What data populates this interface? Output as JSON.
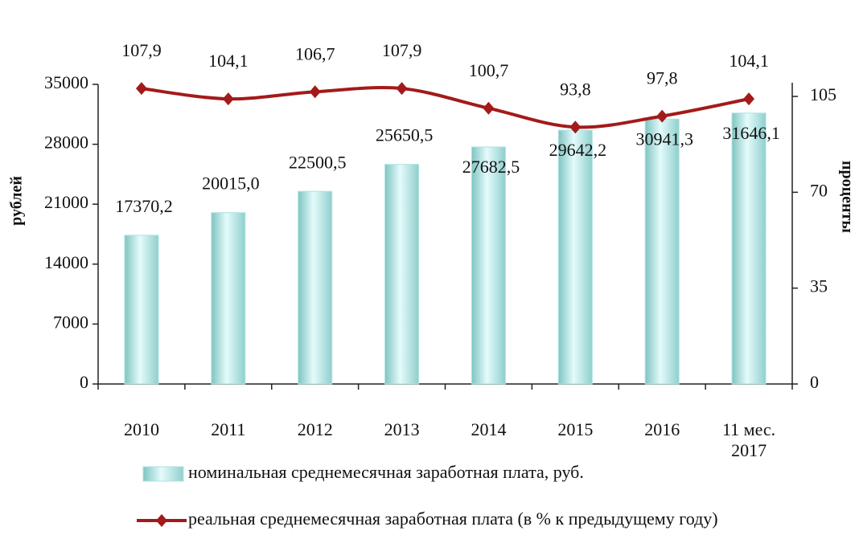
{
  "chart_data": {
    "type": "bar-line",
    "categories": [
      "2010",
      "2011",
      "2012",
      "2013",
      "2014",
      "2015",
      "2016",
      "11 мес. 2017"
    ],
    "y_label": "рублей",
    "y2_label": "проценты",
    "ylim": [
      0,
      35000
    ],
    "yticks": [
      0,
      7000,
      14000,
      21000,
      28000,
      35000
    ],
    "y2lim": [
      0,
      110
    ],
    "y2ticks": [
      0,
      35,
      70,
      105
    ],
    "series": [
      {
        "name": "номинальная среднемесячная заработная плата, руб.",
        "type": "bar",
        "color": "#aee3e1",
        "values": [
          17370.2,
          20015.0,
          22500.5,
          25650.5,
          27682.5,
          29642.2,
          30941.3,
          31646.1
        ],
        "value_labels": [
          "17370,2",
          "20015,0",
          "22500,5",
          "25650,5",
          "27682,5",
          "29642,2",
          "30941,3",
          "31646,1"
        ]
      },
      {
        "name": "реальная среднемесячная заработная плата (в % к предыдущему году)",
        "type": "line",
        "axis": "y2",
        "color": "#a31a1a",
        "values": [
          107.9,
          104.1,
          106.7,
          107.9,
          100.7,
          93.8,
          97.8,
          104.1
        ],
        "value_labels": [
          "107,9",
          "104,1",
          "106,7",
          "107,9",
          "100,7",
          "93,8",
          "97,8",
          "104,1"
        ]
      }
    ]
  }
}
